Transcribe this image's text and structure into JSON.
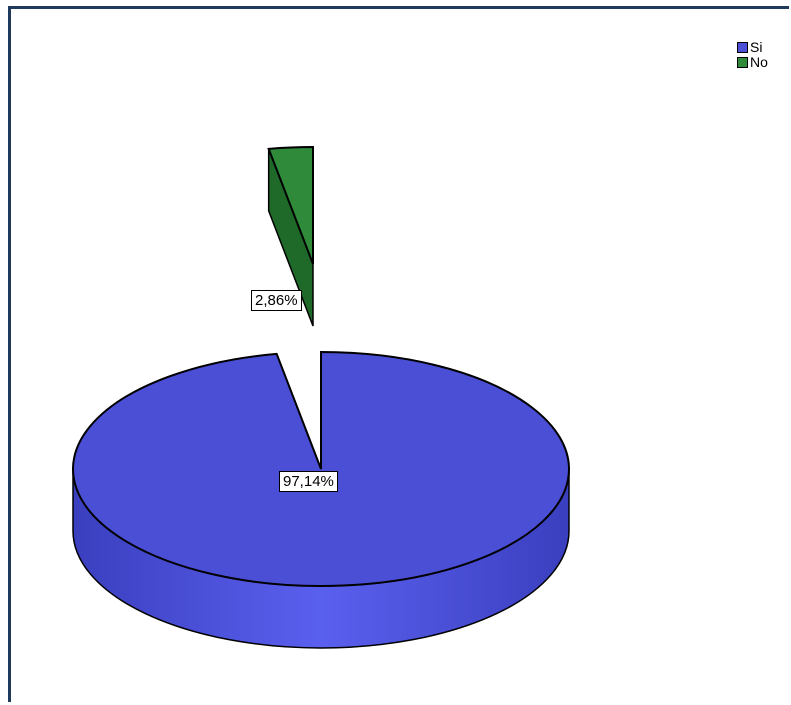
{
  "chart_data": {
    "type": "pie",
    "style": "3d-exploded",
    "slices": [
      {
        "label": "Si",
        "value": 97.14,
        "value_label": "97,14%",
        "color": "#4a4fd6"
      },
      {
        "label": "No",
        "value": 2.86,
        "value_label": "2,86%",
        "color": "#2f8a3a"
      }
    ],
    "legend_position": "top-right",
    "legend": [
      {
        "label": "Si",
        "color": "#4a4fd6"
      },
      {
        "label": "No",
        "color": "#2f8a3a"
      }
    ]
  }
}
